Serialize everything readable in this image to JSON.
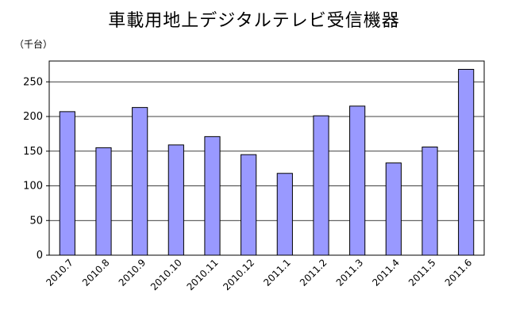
{
  "chart_data": {
    "type": "bar",
    "title": "車載用地上デジタルテレビ受信機器",
    "unit": "（千台）",
    "categories": [
      "2010.7",
      "2010.8",
      "2010.9",
      "2010.10",
      "2010.11",
      "2010.12",
      "2011.1",
      "2011.2",
      "2011.3",
      "2011.4",
      "2011.5",
      "2011.6"
    ],
    "values": [
      207,
      155,
      213,
      159,
      171,
      145,
      118,
      201,
      215,
      133,
      156,
      268
    ],
    "ylim": [
      0,
      280
    ],
    "yticks": [
      0,
      50,
      100,
      150,
      200,
      250
    ],
    "grid": true,
    "bar_color": "#9999ff",
    "bar_stroke": "#000000"
  }
}
